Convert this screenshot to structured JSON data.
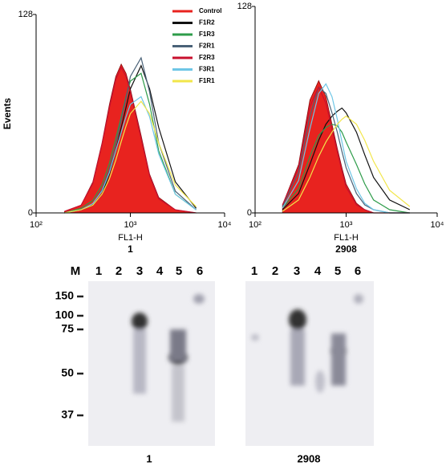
{
  "chart_data": [
    {
      "type": "line",
      "title": "1",
      "xlabel": "FL1-H",
      "ylabel": "Events",
      "xscale": "log",
      "xlim": [
        100,
        10000
      ],
      "ylim": [
        0,
        128
      ],
      "xticks": [
        {
          "value": 100,
          "label": "10²"
        },
        {
          "value": 1000,
          "label": "10³"
        },
        {
          "value": 10000,
          "label": "10⁴"
        }
      ],
      "yticks": [
        0,
        128
      ],
      "x": [
        200,
        300,
        400,
        500,
        600,
        700,
        800,
        900,
        1000,
        1300,
        1600,
        2000,
        3000,
        5000
      ],
      "series": [
        {
          "name": "Control",
          "color": "#e8231f",
          "filled": true,
          "values": [
            1,
            5,
            20,
            45,
            70,
            88,
            96,
            90,
            80,
            50,
            25,
            10,
            2,
            0
          ]
        },
        {
          "name": "F1R2",
          "color": "#111111",
          "values": [
            0,
            2,
            5,
            12,
            25,
            40,
            55,
            68,
            80,
            95,
            80,
            55,
            20,
            3
          ]
        },
        {
          "name": "F1R3",
          "color": "#2e9c4a",
          "values": [
            0,
            3,
            8,
            18,
            32,
            48,
            62,
            75,
            85,
            90,
            70,
            40,
            12,
            2
          ]
        },
        {
          "name": "F2R1",
          "color": "#4a6278",
          "values": [
            0,
            2,
            6,
            15,
            28,
            44,
            60,
            74,
            88,
            100,
            78,
            45,
            14,
            2
          ]
        },
        {
          "name": "F2R3",
          "color": "#c8102e",
          "values": [
            1,
            5,
            19,
            44,
            68,
            86,
            94,
            88,
            78,
            48,
            24,
            9,
            2,
            0
          ]
        },
        {
          "name": "F3R1",
          "color": "#6ec6e6",
          "values": [
            0,
            2,
            6,
            14,
            26,
            40,
            52,
            62,
            70,
            75,
            62,
            38,
            12,
            2
          ]
        },
        {
          "name": "F1R1",
          "color": "#f2e64a",
          "values": [
            0,
            2,
            5,
            12,
            22,
            34,
            46,
            56,
            64,
            72,
            64,
            45,
            18,
            4
          ]
        }
      ]
    },
    {
      "type": "line",
      "title": "2908",
      "xlabel": "FL1-H",
      "xscale": "log",
      "xlim": [
        100,
        10000
      ],
      "ylim": [
        0,
        128
      ],
      "xticks": [
        {
          "value": 100,
          "label": "10²"
        },
        {
          "value": 1000,
          "label": "10³"
        },
        {
          "value": 10000,
          "label": "10⁴"
        }
      ],
      "yticks": [
        0,
        128
      ],
      "x": [
        200,
        300,
        400,
        500,
        600,
        700,
        800,
        900,
        1000,
        1300,
        1600,
        2000,
        3000,
        5000
      ],
      "series": [
        {
          "name": "Control",
          "color": "#e8231f",
          "filled": true,
          "values": [
            5,
            30,
            70,
            82,
            72,
            55,
            40,
            28,
            18,
            6,
            2,
            0,
            0,
            0
          ]
        },
        {
          "name": "F1R2",
          "color": "#111111",
          "values": [
            2,
            12,
            30,
            45,
            55,
            60,
            63,
            65,
            62,
            50,
            36,
            22,
            8,
            2
          ]
        },
        {
          "name": "F1R3",
          "color": "#2e9c4a",
          "values": [
            3,
            15,
            35,
            48,
            53,
            55,
            54,
            50,
            44,
            30,
            18,
            8,
            2,
            0
          ]
        },
        {
          "name": "F2R1",
          "color": "#4a6278",
          "values": [
            4,
            25,
            60,
            78,
            74,
            62,
            50,
            38,
            28,
            12,
            5,
            2,
            0,
            0
          ]
        },
        {
          "name": "F2R3",
          "color": "#c8102e",
          "values": [
            5,
            28,
            66,
            78,
            68,
            52,
            38,
            26,
            16,
            5,
            2,
            0,
            0,
            0
          ]
        },
        {
          "name": "F3R1",
          "color": "#6ec6e6",
          "values": [
            3,
            20,
            52,
            74,
            80,
            72,
            58,
            44,
            32,
            15,
            6,
            2,
            0,
            0
          ]
        },
        {
          "name": "F1R1",
          "color": "#f2e64a",
          "values": [
            1,
            8,
            22,
            35,
            44,
            50,
            55,
            58,
            60,
            55,
            45,
            32,
            14,
            4
          ]
        }
      ]
    }
  ],
  "blot": {
    "marker_label": "M",
    "markers": [
      "150",
      "100",
      "75",
      "50",
      "37"
    ],
    "panels": [
      {
        "caption": "1",
        "lanes": [
          "1",
          "2",
          "3",
          "4",
          "5",
          "6"
        ]
      },
      {
        "caption": "2908",
        "lanes": [
          "1",
          "2",
          "3",
          "4",
          "5",
          "6"
        ]
      }
    ]
  }
}
